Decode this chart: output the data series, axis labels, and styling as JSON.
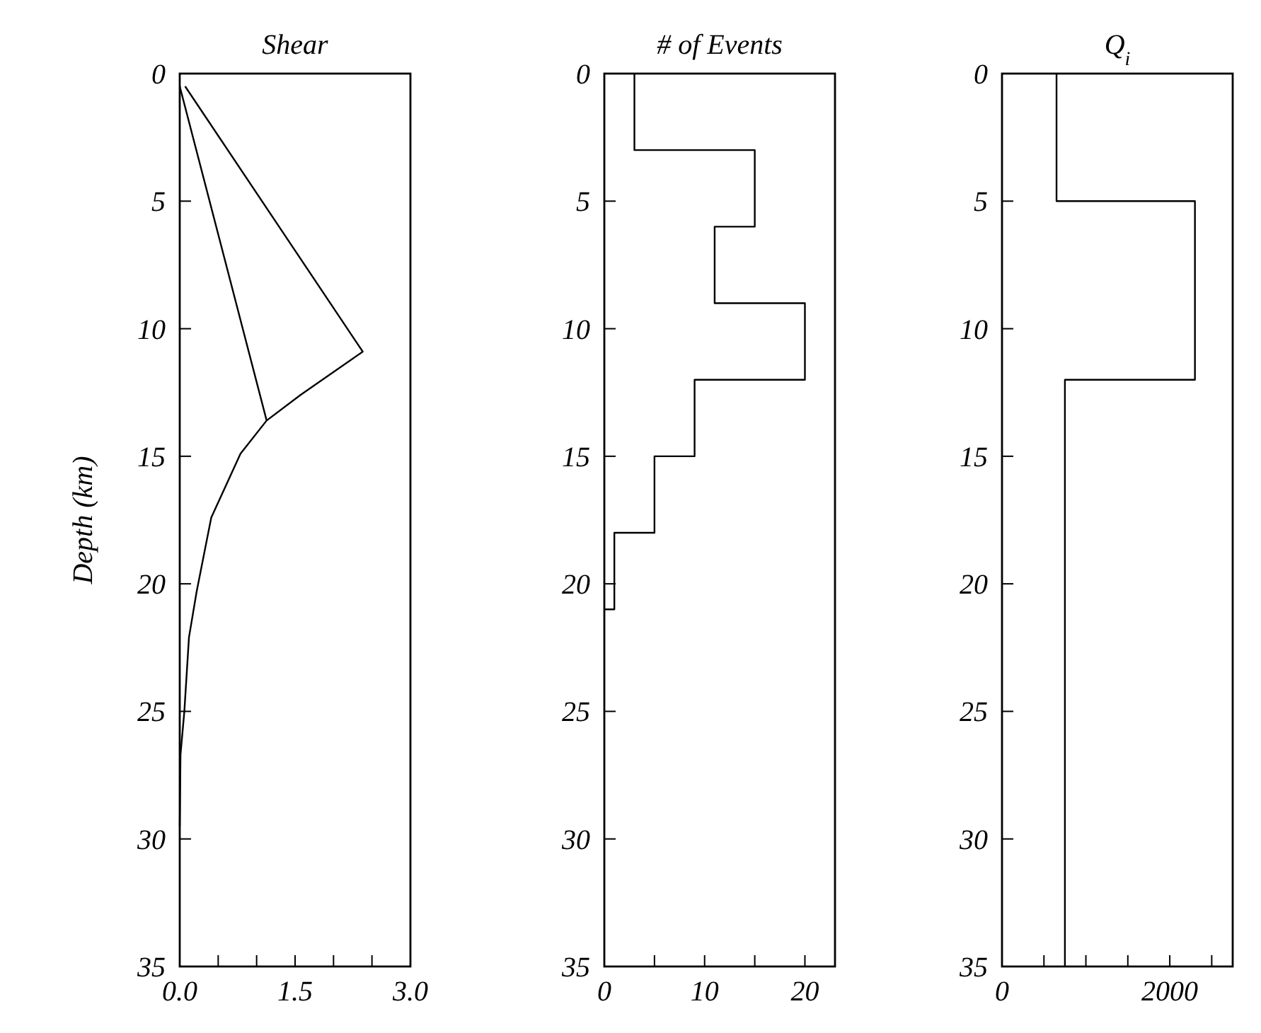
{
  "chart_data": [
    {
      "type": "line",
      "title": "Shear",
      "ylabel": "Depth (km)",
      "xlim": [
        0,
        3
      ],
      "xticks": [
        {
          "value": 0,
          "label": "0.0"
        },
        {
          "value": 0.5,
          "label": null
        },
        {
          "value": 1,
          "label": null
        },
        {
          "value": 1.5,
          "label": "1.5"
        },
        {
          "value": 2,
          "label": null
        },
        {
          "value": 2.5,
          "label": null
        },
        {
          "value": 3,
          "label": "3.0"
        }
      ],
      "ylim": [
        35,
        0
      ],
      "yticks": [
        0,
        5,
        10,
        15,
        20,
        25,
        30,
        35
      ],
      "marker": "none",
      "series": [
        {
          "color": "#000000",
          "x": [
            0.07,
            2.38,
            1.57,
            1.13,
            0.79,
            0.41,
            0.22,
            0.12,
            0.06,
            0.01,
            0.0
          ],
          "values": [
            0.5,
            10.9,
            12.6,
            13.6,
            14.9,
            17.4,
            20.3,
            22.1,
            25.0,
            26.7,
            29.5
          ]
        },
        {
          "color": "#000000",
          "x": [
            0.0,
            1.13
          ],
          "values": [
            0.5,
            13.6
          ]
        }
      ]
    },
    {
      "type": "line",
      "title": "# of Events",
      "xlim": [
        0,
        23
      ],
      "xticks": [
        0,
        {
          "value": 5,
          "label": null
        },
        10,
        {
          "value": 15,
          "label": null
        },
        20
      ],
      "ylim": [
        35,
        0
      ],
      "yticks": [
        0,
        5,
        10,
        15,
        20,
        25,
        30,
        35
      ],
      "marker": "none",
      "series": [
        {
          "color": "#000000",
          "x": [
            3,
            3,
            15,
            15,
            11,
            11,
            20,
            20,
            9,
            9,
            5,
            5,
            1,
            1,
            0
          ],
          "values": [
            0,
            3,
            3,
            6,
            6,
            9,
            9,
            12,
            12,
            15,
            15,
            18,
            18,
            21,
            21
          ]
        }
      ]
    },
    {
      "type": "line",
      "title": "Q$_{i}$",
      "xlim": [
        0,
        2750
      ],
      "xticks": [
        0,
        {
          "value": 500,
          "label": null
        },
        {
          "value": 1000,
          "label": null
        },
        {
          "value": 1500,
          "label": null
        },
        2000,
        {
          "value": 2500,
          "label": null
        }
      ],
      "ylim": [
        35,
        0
      ],
      "yticks": [
        0,
        5,
        10,
        15,
        20,
        25,
        30,
        35
      ],
      "marker": "none",
      "series": [
        {
          "color": "#000000",
          "x": [
            650,
            650,
            2300,
            2300,
            750,
            750
          ],
          "values": [
            0,
            5,
            5,
            12,
            12,
            35
          ]
        }
      ]
    }
  ]
}
